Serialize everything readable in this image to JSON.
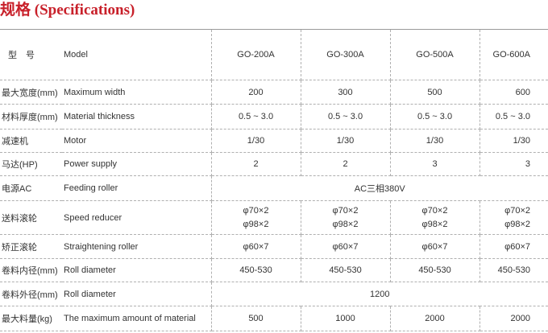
{
  "title": "规格 (Specifications)",
  "header": {
    "label_cn": "型　号",
    "label_en": "Model",
    "models": [
      "GO-200A",
      "GO-300A",
      "GO-500A",
      "GO-600A"
    ]
  },
  "rows": [
    {
      "cn": "最大宽度(mm)",
      "en": "Maximum width",
      "values": [
        "200",
        "300",
        "500",
        "600"
      ]
    },
    {
      "cn": "材料厚度(mm)",
      "en": "Material thickness",
      "values": [
        "0.5 ~ 3.0",
        "0.5 ~ 3.0",
        "0.5 ~ 3.0",
        "0.5 ~ 3.0"
      ]
    },
    {
      "cn": "减速机",
      "en": "Motor",
      "values": [
        "1/30",
        "1/30",
        "1/30",
        "1/30"
      ]
    },
    {
      "cn": "马达(HP)",
      "en": "Power supply",
      "values": [
        "2",
        "2",
        "3",
        "3"
      ]
    },
    {
      "cn": "电源AC",
      "en": "Feeding roller",
      "merged": "AC三相380V"
    },
    {
      "cn": "送料滚轮",
      "en": "Speed reducer",
      "values": [
        [
          "φ70×2",
          "φ98×2"
        ],
        [
          "φ70×2",
          "φ98×2"
        ],
        [
          "φ70×2",
          "φ98×2"
        ],
        [
          "φ70×2",
          "φ98×2"
        ]
      ]
    },
    {
      "cn": "矫正滚轮",
      "en": "Straightening roller",
      "values": [
        "φ60×7",
        "φ60×7",
        "φ60×7",
        "φ60×7"
      ]
    },
    {
      "cn": "卷料内径(mm)",
      "en": "Roll diameter",
      "values": [
        "450-530",
        "450-530",
        "450-530",
        "450-530"
      ]
    },
    {
      "cn": "卷料外径(mm)",
      "en": "Roll diameter",
      "merged": "1200"
    },
    {
      "cn": "最大料量(kg)",
      "en": "The maximum amount of material",
      "values": [
        "500",
        "1000",
        "2000",
        "2000"
      ]
    }
  ]
}
